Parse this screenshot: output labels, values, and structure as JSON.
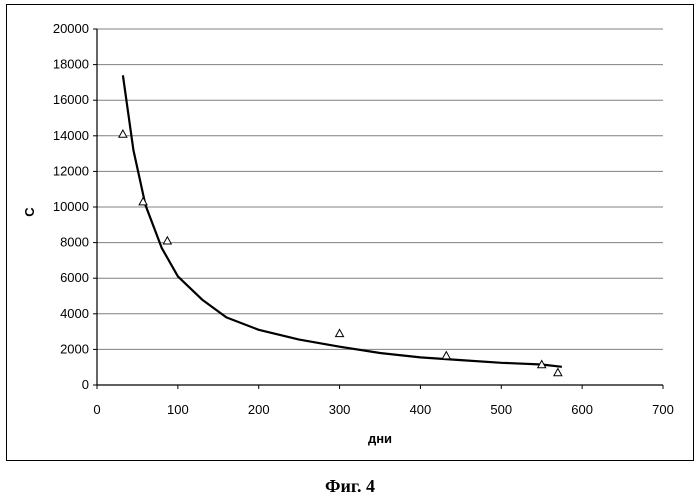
{
  "figure": {
    "caption": "Фиг. 4"
  },
  "chart_data": {
    "type": "scatter",
    "title": "",
    "xlabel": "дни",
    "ylabel": "С",
    "xlim": [
      0,
      700
    ],
    "ylim": [
      0,
      20000
    ],
    "xticks": [
      0,
      100,
      200,
      300,
      400,
      500,
      600,
      700
    ],
    "yticks": [
      0,
      2000,
      4000,
      6000,
      8000,
      10000,
      12000,
      14000,
      16000,
      18000,
      20000
    ],
    "grid": "horizontal",
    "legend": "none",
    "series": [
      {
        "kind": "points",
        "marker": "triangle",
        "x": [
          32,
          57,
          87,
          300,
          432,
          550,
          570
        ],
        "y": [
          14100,
          10300,
          8100,
          2900,
          1650,
          1150,
          700
        ]
      },
      {
        "kind": "trendline",
        "x": [
          32,
          45,
          60,
          80,
          100,
          130,
          160,
          200,
          250,
          300,
          350,
          400,
          450,
          500,
          550,
          575
        ],
        "y": [
          17400,
          13200,
          10100,
          7700,
          6100,
          4800,
          3800,
          3100,
          2550,
          2150,
          1800,
          1550,
          1400,
          1250,
          1150,
          1020
        ]
      }
    ],
    "colors": {
      "axis": "#000000",
      "grid": "#808080",
      "line": "#000000",
      "marker": "#000000"
    }
  }
}
